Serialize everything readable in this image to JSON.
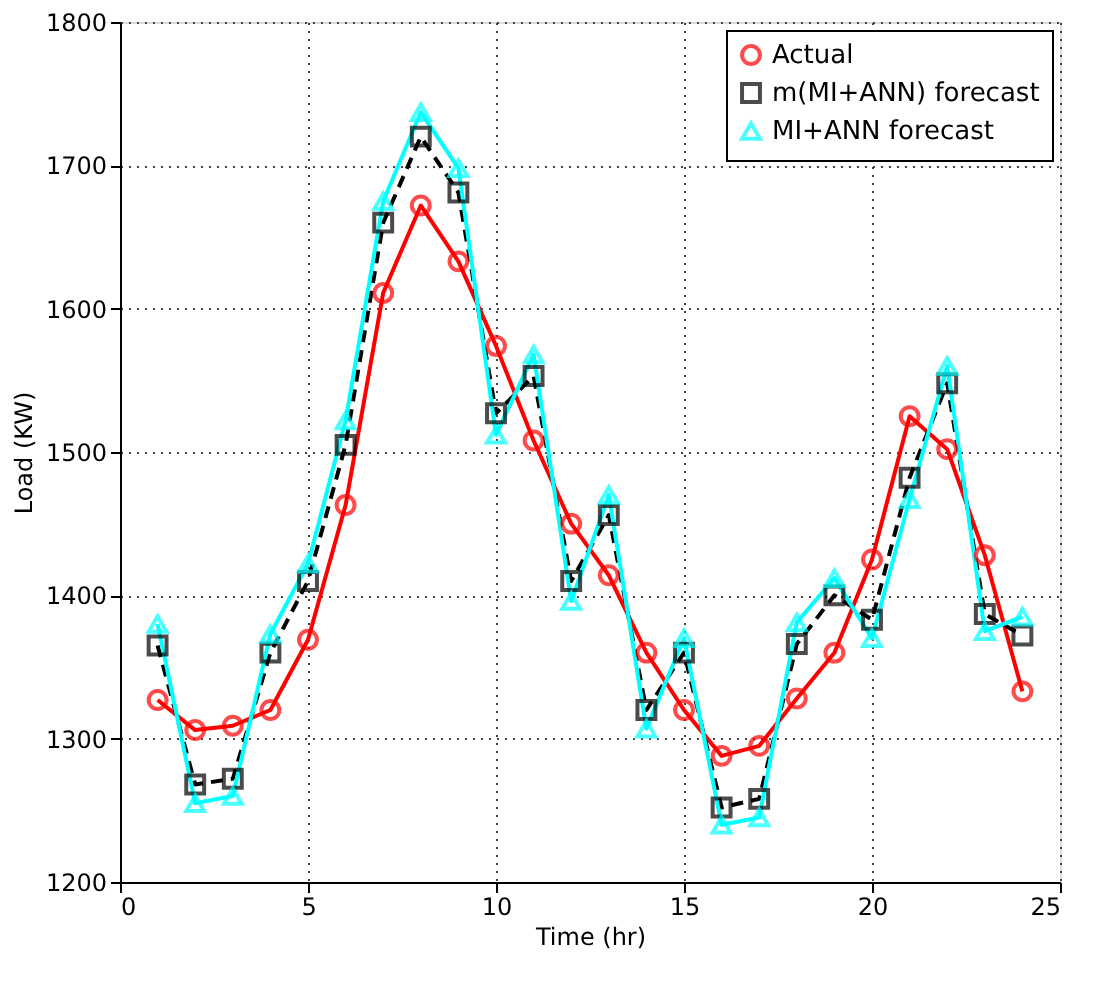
{
  "chart_data": {
    "type": "line",
    "xlabel": "Time (hr)",
    "ylabel": "Load (KW)",
    "x": [
      1,
      2,
      3,
      4,
      5,
      6,
      7,
      8,
      9,
      10,
      11,
      12,
      13,
      14,
      15,
      16,
      17,
      18,
      19,
      20,
      21,
      22,
      23,
      24
    ],
    "series": [
      {
        "name": "Actual",
        "color": "#ff0000",
        "marker": "circle",
        "line_style": "solid",
        "values": [
          1327,
          1306,
          1309,
          1320,
          1369,
          1463,
          1611,
          1672,
          1633,
          1574,
          1508,
          1450,
          1414,
          1360,
          1320,
          1288,
          1295,
          1328,
          1360,
          1425,
          1525,
          1502,
          1428,
          1333
        ]
      },
      {
        "name": "m(MI+ANN) forecast",
        "color": "#000000",
        "marker": "square",
        "line_style": "dashed",
        "values": [
          1365,
          1268,
          1272,
          1360,
          1410,
          1505,
          1660,
          1720,
          1681,
          1527,
          1553,
          1410,
          1456,
          1320,
          1360,
          1252,
          1258,
          1366,
          1400,
          1383,
          1482,
          1548,
          1387,
          1372
        ]
      },
      {
        "name": "MI+ANN forecast",
        "color": "#00ffff",
        "marker": "triangle",
        "line_style": "solid",
        "values": [
          1380,
          1255,
          1260,
          1373,
          1422,
          1522,
          1675,
          1737,
          1698,
          1512,
          1568,
          1396,
          1470,
          1307,
          1370,
          1240,
          1245,
          1381,
          1412,
          1370,
          1467,
          1560,
          1375,
          1385
        ]
      }
    ],
    "xlim": [
      0,
      25
    ],
    "xticks": [
      0,
      5,
      10,
      15,
      20,
      25
    ],
    "ylim": [
      1200,
      1800
    ],
    "yticks": [
      1200,
      1300,
      1400,
      1500,
      1600,
      1700,
      1800
    ],
    "grid": true,
    "legend": "top right"
  }
}
